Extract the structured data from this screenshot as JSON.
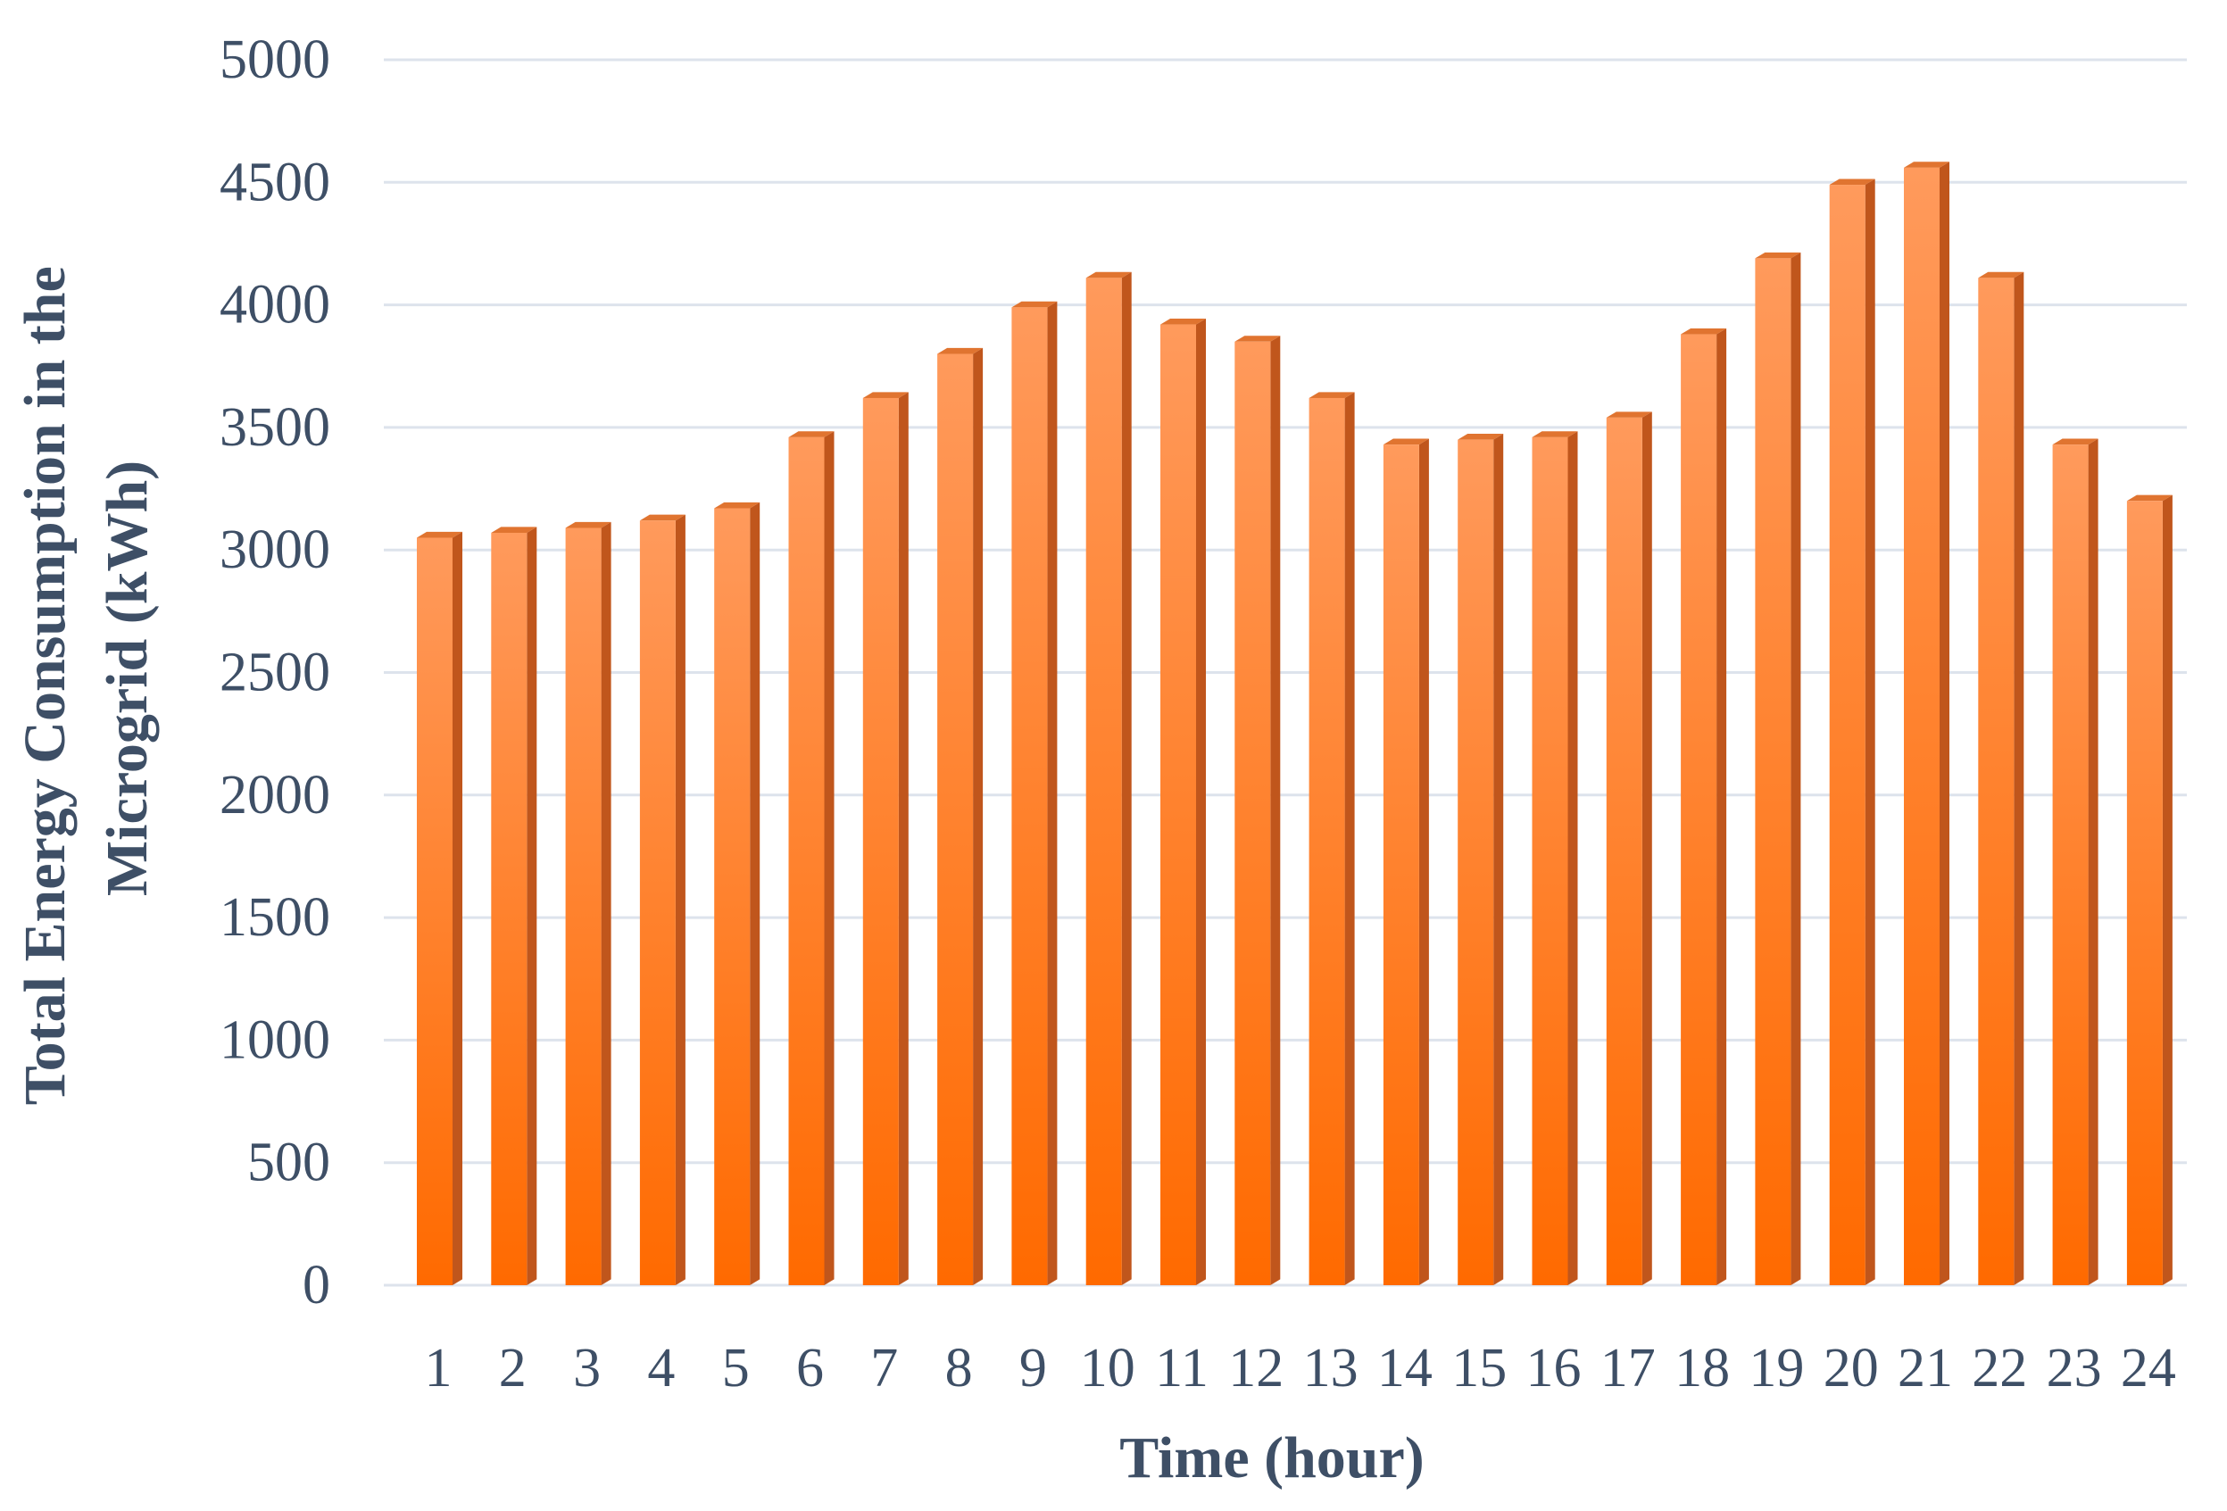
{
  "chart_data": {
    "type": "bar",
    "title": "",
    "xlabel": "Time (hour)",
    "ylabel_lines": [
      "Total Energy Consumption in the",
      "Microgrid (kWh)"
    ],
    "ylim": [
      0,
      5000
    ],
    "yticks": [
      0,
      500,
      1000,
      1500,
      2000,
      2500,
      3000,
      3500,
      4000,
      4500,
      5000
    ],
    "grid": true,
    "legend": "none",
    "categories": [
      "1",
      "2",
      "3",
      "4",
      "5",
      "6",
      "7",
      "8",
      "9",
      "10",
      "11",
      "12",
      "13",
      "14",
      "15",
      "16",
      "17",
      "18",
      "19",
      "20",
      "21",
      "22",
      "23",
      "24"
    ],
    "values": [
      3050,
      3070,
      3090,
      3120,
      3170,
      3460,
      3620,
      3800,
      3990,
      4110,
      3920,
      3850,
      3620,
      3430,
      3450,
      3460,
      3540,
      3880,
      4190,
      4490,
      4560,
      4110,
      3430,
      3200
    ],
    "colors": {
      "bar_top": "#ff9a5c",
      "bar_bottom": "#ff6a00",
      "bar_side": "#c0561c",
      "bar_cap": "#e07430",
      "grid": "#dde3ec",
      "text": "#3e4f66"
    }
  }
}
